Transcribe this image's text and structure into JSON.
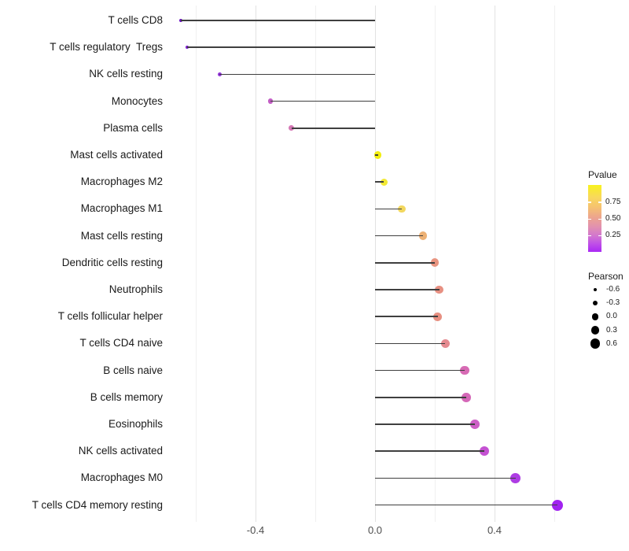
{
  "chart_data": {
    "type": "scatter",
    "variant": "lollipop",
    "title": "",
    "xlabel": "",
    "ylabel": "",
    "grid": "vertical-only",
    "legend_position": "right",
    "xlim": [
      -0.7,
      0.65
    ],
    "x_ticks": [
      "-0.4",
      "0.0",
      "0.4"
    ],
    "x_tick_values": [
      -0.4,
      0.0,
      0.4
    ],
    "minor_grid_values": [
      -0.6,
      -0.2,
      0.2,
      0.6
    ],
    "rows": [
      {
        "label": "T cells CD8",
        "pearson": -0.65,
        "dot_color": "#6a10c4"
      },
      {
        "label": "T cells regulatory  Tregs",
        "pearson": -0.63,
        "dot_color": "#7d1bd2"
      },
      {
        "label": "NK cells resting",
        "pearson": -0.52,
        "dot_color": "#9130da"
      },
      {
        "label": "Monocytes",
        "pearson": -0.35,
        "dot_color": "#c25cc4"
      },
      {
        "label": "Plasma cells",
        "pearson": -0.28,
        "dot_color": "#d577b5"
      },
      {
        "label": "Mast cells activated",
        "pearson": 0.01,
        "dot_color": "#f2ee10"
      },
      {
        "label": "Macrophages M2",
        "pearson": 0.03,
        "dot_color": "#f2e934"
      },
      {
        "label": "Macrophages M1",
        "pearson": 0.09,
        "dot_color": "#f2d75e"
      },
      {
        "label": "Mast cells resting",
        "pearson": 0.16,
        "dot_color": "#edb174"
      },
      {
        "label": "Dendritic cells resting",
        "pearson": 0.2,
        "dot_color": "#e89480"
      },
      {
        "label": "Neutrophils",
        "pearson": 0.215,
        "dot_color": "#e79082"
      },
      {
        "label": "T cells follicular helper",
        "pearson": 0.21,
        "dot_color": "#e79082"
      },
      {
        "label": "T cells CD4 naive",
        "pearson": 0.235,
        "dot_color": "#e58a90"
      },
      {
        "label": "B cells naive",
        "pearson": 0.3,
        "dot_color": "#d76ab4"
      },
      {
        "label": "B cells memory",
        "pearson": 0.305,
        "dot_color": "#d568b8"
      },
      {
        "label": "Eosinophils",
        "pearson": 0.335,
        "dot_color": "#cd5ec6"
      },
      {
        "label": "NK cells activated",
        "pearson": 0.365,
        "dot_color": "#c452d2"
      },
      {
        "label": "Macrophages M0",
        "pearson": 0.47,
        "dot_color": "#ae3ce4"
      },
      {
        "label": "T cells CD4 memory resting",
        "pearson": 0.61,
        "dot_color": "#a122f0"
      }
    ],
    "color_legend": {
      "title": "Pvalue",
      "tick_labels": [
        "0.75",
        "0.50",
        "0.25"
      ],
      "tick_values": [
        0.75,
        0.5,
        0.25
      ],
      "range": [
        0,
        1
      ],
      "gradient_stops": [
        {
          "pos": 0,
          "color": "#f8f21d"
        },
        {
          "pos": 18,
          "color": "#f8d95c"
        },
        {
          "pos": 32,
          "color": "#f6c46e"
        },
        {
          "pos": 48,
          "color": "#eda58e"
        },
        {
          "pos": 62,
          "color": "#e292ae"
        },
        {
          "pos": 76,
          "color": "#d276cf"
        },
        {
          "pos": 88,
          "color": "#bf4fe8"
        },
        {
          "pos": 100,
          "color": "#aa28f4"
        }
      ]
    },
    "size_legend": {
      "title": "Pearson",
      "entry_labels": [
        "-0.6",
        "-0.3",
        "0.0",
        "0.3",
        "0.6"
      ],
      "entry_values": [
        -0.6,
        -0.3,
        0.0,
        0.3,
        0.6
      ]
    }
  },
  "styles": {
    "stem_color": "#3f3f3f",
    "major_grid_color": "#e2e2e2",
    "minor_grid_color": "#f0f0f0",
    "axis_text_color": "#4d4d4d",
    "label_color": "#1a1a1a",
    "background": "#ffffff"
  }
}
